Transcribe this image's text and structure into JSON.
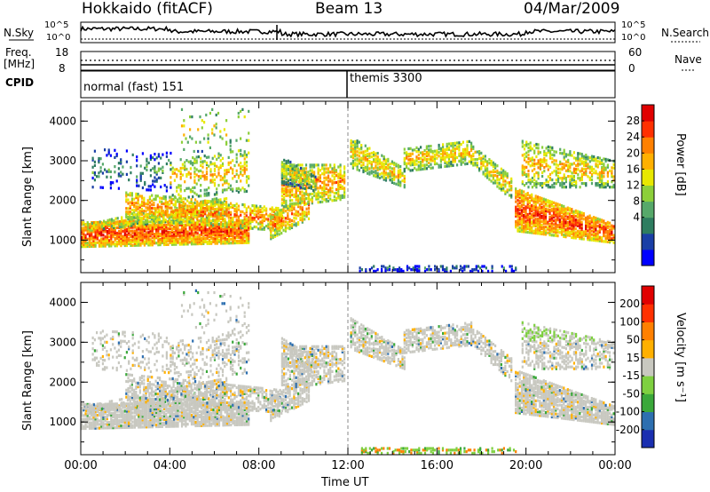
{
  "header": {
    "title_left": "Hokkaido (fitACF)",
    "title_center": "Beam 13",
    "title_right": "04/Mar/2009"
  },
  "top_panels": {
    "nsky_label": "N.Sky",
    "nsky_ticks": [
      "10^5",
      "10^0"
    ],
    "nsearch_label": "N.Search",
    "nsearch_ticks": [
      "10^5",
      "10^0"
    ],
    "freq_label_1": "Freq.",
    "freq_label_2": "[MHz]",
    "freq_ticks": [
      "18",
      "8"
    ],
    "nave_label": "Nave",
    "nave_ticks": [
      "60",
      "0"
    ],
    "cpid_label": "CPID",
    "cpid_segments": [
      {
        "label": "normal (fast) 151",
        "start": "00:00"
      },
      {
        "label": "themis 3300",
        "start": "12:00"
      }
    ]
  },
  "chart_data": [
    {
      "type": "heatmap",
      "name": "power",
      "ylabel": "Slant Range [km]",
      "xlabel": "Time UT",
      "x_ticks": [
        "00:00",
        "04:00",
        "08:00",
        "12:00",
        "16:00",
        "20:00",
        "00:00"
      ],
      "x_range_hours": [
        0,
        24
      ],
      "y_ticks": [
        1000,
        2000,
        3000,
        4000
      ],
      "y_range_km": [
        180,
        4500
      ],
      "colorbar": {
        "label": "Power [dB]",
        "ticks": [
          "28",
          "24",
          "20",
          "16",
          "12",
          "8",
          "4"
        ],
        "colors": [
          "#0000ff",
          "#1a3fa6",
          "#2e7d60",
          "#56a86a",
          "#8ccf3a",
          "#e8e800",
          "#ffb000",
          "#ff8000",
          "#ff3000",
          "#e00000"
        ]
      }
    },
    {
      "type": "heatmap",
      "name": "velocity",
      "ylabel": "Slant Range [km]",
      "xlabel": "Time UT",
      "x_ticks": [
        "00:00",
        "04:00",
        "08:00",
        "12:00",
        "16:00",
        "20:00",
        "00:00"
      ],
      "x_range_hours": [
        0,
        24
      ],
      "y_ticks": [
        1000,
        2000,
        3000,
        4000
      ],
      "y_range_km": [
        180,
        4500
      ],
      "colorbar": {
        "label": "Velocity [m s⁻¹]",
        "ticks": [
          "200",
          "100",
          "50",
          "15",
          "-15",
          "-50",
          "-100",
          "-200"
        ],
        "colors": [
          "#1a2fb0",
          "#2d6fb0",
          "#3aa83a",
          "#7ed040",
          "#c8c8c0",
          "#ffb000",
          "#ff8000",
          "#ff3000",
          "#e00000"
        ]
      }
    }
  ],
  "xlabel": "Time UT"
}
